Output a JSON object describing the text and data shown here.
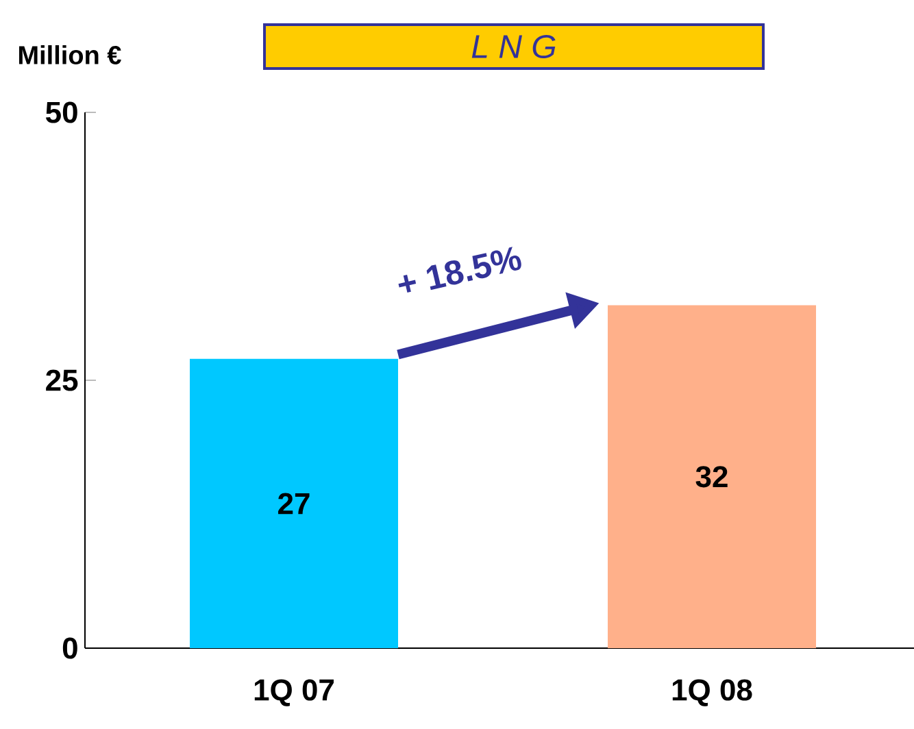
{
  "chart_data": {
    "type": "bar",
    "title": "L N G",
    "ylabel": "Million €",
    "categories": [
      "1Q 07",
      "1Q 08"
    ],
    "values": [
      27,
      32
    ],
    "colors": [
      "#00c8ff",
      "#ffb08a"
    ],
    "ylim": [
      0,
      50
    ],
    "yticks": [
      0,
      25,
      50
    ],
    "data_labels": true,
    "annotations": [
      "+ 18.5%"
    ]
  }
}
